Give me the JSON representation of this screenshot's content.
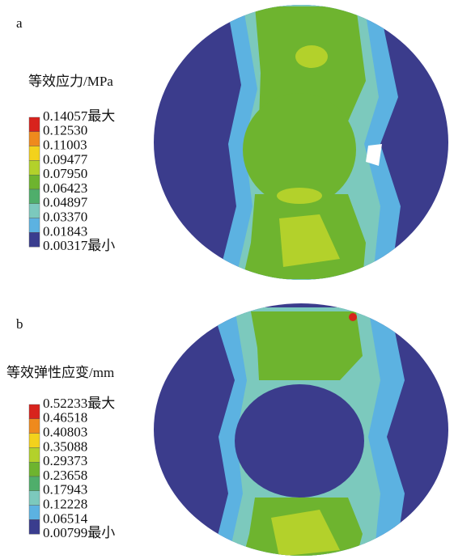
{
  "panels": [
    {
      "label": "a",
      "legend_title": "等效应力/MPa",
      "levels": [
        "0.14057最大",
        "0.12530",
        "0.11003",
        "0.09477",
        "0.07950",
        "0.06423",
        "0.04897",
        "0.03370",
        "0.01843",
        "0.00317最小"
      ],
      "colors": [
        "#d8231d",
        "#ef8a1d",
        "#f3d21c",
        "#b3d12b",
        "#6eb42f",
        "#4fae6b",
        "#7cc9bd",
        "#5cb2e1",
        "#3a3d8e"
      ]
    },
    {
      "label": "b",
      "legend_title": "等效弹性应变/mm",
      "levels": [
        "0.52233最大",
        "0.46518",
        "0.40803",
        "0.35088",
        "0.29373",
        "0.23658",
        "0.17943",
        "0.12228",
        "0.06514",
        "0.00799最小"
      ],
      "colors": [
        "#d8231d",
        "#ef8a1d",
        "#f3d21c",
        "#b3d12b",
        "#6eb42f",
        "#4fae6b",
        "#7cc9bd",
        "#5cb2e1",
        "#3a3d8e"
      ]
    }
  ]
}
